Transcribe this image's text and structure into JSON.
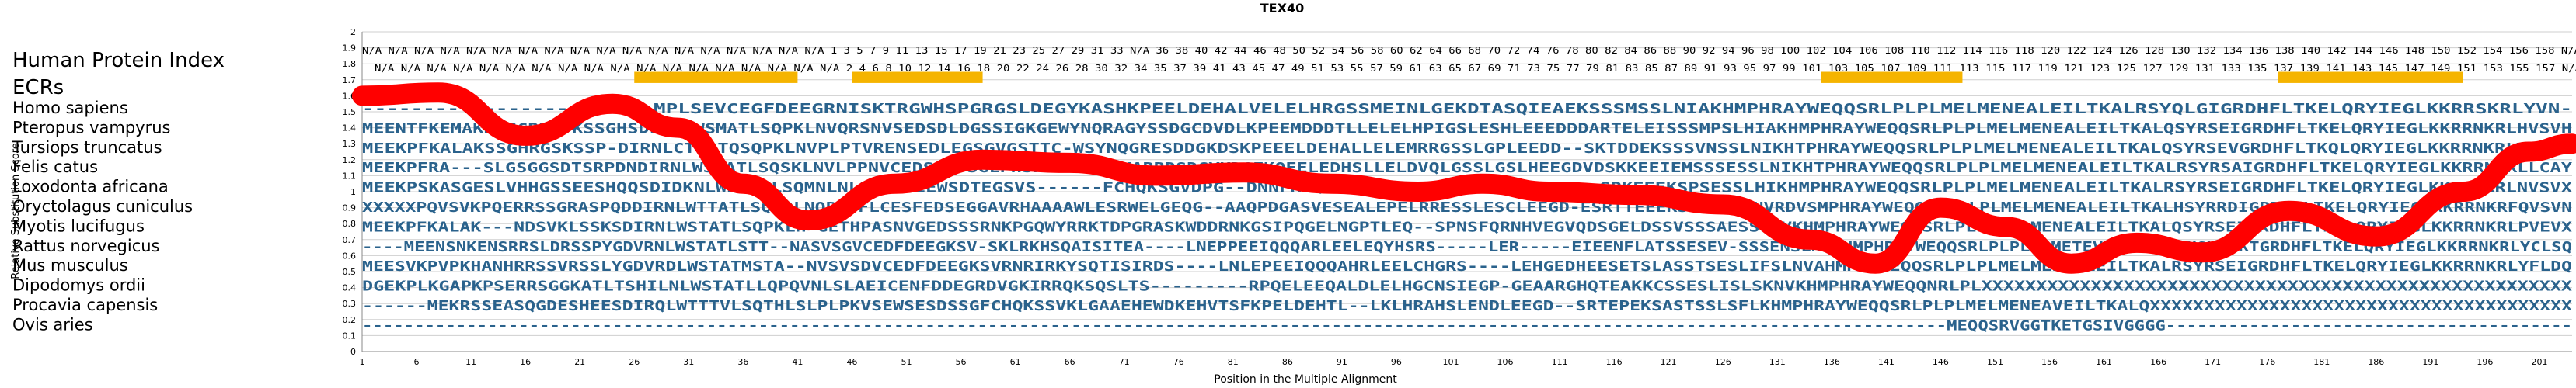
{
  "chart_data": {
    "type": "line",
    "title": "TEX40",
    "xlabel": "Position in the Multiple Alignment",
    "ylabel": "Relative Substitution Score",
    "xlim": [
      1,
      204
    ],
    "ylim": [
      0,
      2.0
    ],
    "x_ticks": [
      1,
      6,
      11,
      16,
      21,
      26,
      31,
      36,
      41,
      46,
      51,
      56,
      61,
      66,
      71,
      76,
      81,
      86,
      91,
      96,
      101,
      106,
      111,
      116,
      121,
      126,
      131,
      136,
      141,
      146,
      151,
      156,
      161,
      166,
      171,
      176,
      181,
      186,
      191,
      196,
      201
    ],
    "y_ticks": [
      "0",
      "0.1",
      "0.2",
      "0.3",
      "0.4",
      "0.5",
      "0.6",
      "0.7",
      "0.8",
      "0.9",
      "1",
      "1.1",
      "1.2",
      "1.3",
      "1.4",
      "1.5",
      "1.6",
      "1.7",
      "1.8",
      "1.9",
      "2"
    ],
    "index_label": "Human Protein Index",
    "ecr_label": "ECRs",
    "index_row_top": "N/A N/A N/A N/A N/A N/A N/A N/A N/A N/A N/A N/A N/A N/A N/A N/A N/A N/A 1 3 5 7 9 11 13 15 17 19 21 23 25 27 29 31 33 N/A 36 38 40 42 44 46 48 50 52 54 56 58 60 62 64 66 68 70 72 74 76 78 80 82 84 86 88 90 92 94 96 98 100 102 104 106 108 110 112 114 116 118 120 122 124 126 128 130 132 134 136 138 140 142 144 146 148 150 152 154 156 158 N/A",
    "index_row_bottom": "N/A N/A N/A N/A N/A N/A N/A N/A N/A N/A N/A N/A N/A N/A N/A N/A N/A N/A 2 4 6 8 10 12 14 16 18 20 22 24 26 28 30 32 34 35 37 39 41 43 45 47 49 51 53 55 57 59 61 63 65 67 69 71 73 75 77 79 81 83 85 87 89 91 93 95 97 99 101 103 105 107 109 111 113 115 117 119 121 123 125 127 129 131 133 135 137 139 141 143 145 147 149 151 153 155 157 N/A",
    "ecrs": [
      [
        26,
        41
      ],
      [
        46,
        58
      ],
      [
        135,
        148
      ],
      [
        177,
        194
      ]
    ],
    "species": [
      {
        "name": "Homo sapiens",
        "seq": "------------------------MPLSEVCEGFDEEGRNISKTRGWHSPGRGSLDEGYKASHKPEELDEHALVELELHRGSSMEINLGEKDTASQIEAEKSSSMSSLNIAKHMPHRAYWEQQSRLPLPLMELMENEALEILTKALRSYQLGIGRDHFLTKELQRYIEGLKKRRSKRLYVN-"
      },
      {
        "name": "Pteropus vampyrus",
        "seq": "MEENTFKEMAKSSGCRNSVKSSGHSDIRNLWSMATLSQPKLNVQRSNVSEDSDLDGSSIGKGEWYNQRAGYSSDGCDVDLKPEEMDDDTLLELELHPIGSLESHLEEEDDDARTELEISSSMPSLHIAKHMPHRAYWEQQSRLPLPLMELMENEALEILTKALQSYRSEIGRDHFLTKELQRYIEGLKKRRNKRLHVSVH"
      },
      {
        "name": "Tursiops truncatus",
        "seq": "MEEKPFKALAKSSGHRGSKSSP-DIRNLCTTATQSQPKLNVPLPTVRENSEDLEGSGVGSTTC-WSYNQGRESDDGKDSKPEEELDEHALLELEMRRGSSLGPLEEDD--SKTDDEKSSSVNSSLNIKHTPHRAYWEQQSRLPLPLMELMENEALEILTKALQSYRSEVGRDHFLTKQLQRYIEGLKKRRNKRLYVN--"
      },
      {
        "name": "Felis catus",
        "seq": "MEEKPFRA---SLGSGGSDTSRPDNDIRNLWSTATLSQSKLNVLPPNVCEDSLEDSGLPHSKTRRWRHEKARRDSDGYKDGFKQEELEDHSLLELDVQLGSSLGSLHEEGDVDSKKEEIEMSSSESSLNIKHTPHRAYWEQQSRLPLPLMELMENEALEILTKALRSYRSAIGRDHFLTKELQRYIEGLKKRRNKRLLCAY"
      },
      {
        "name": "Loxodonta africana",
        "seq": "MEEKPSKASGESLVHHGSSEESHQQSDIDKNLWSTATLSQMNLNLPLSKVEEWSDTEGSVS------FCHQKSGVDPG--DNNFK-QELDEHTLLELELFQSGSDLEERE--SRKEEEKSPSESSLHIKHMPHRAYWEQQSRLPLPLMELMENEALEILTKALRSYRSEIGRDHFLTKELQRYIEGLKKRRNKRLNVSVX"
      },
      {
        "name": "Oryctolagus cuniculus",
        "seq": "XXXXXPQVSVKPQERRSSGRASPQDDIRNLWTTATLSQSQLNQPASFLCESFEDSEGGAVRHAAAAWLESRWELGEQG--AAQPDGASVESEALEPELRRESSLESCLEEGD-ESRTTEEEKSSSESALNVRDVSMPHRAYWEQQSRLPLPLMELMENEALEILTKALHSYRRDIGRDHFLTKELQRYIEGLKKRRNKRFQVSVN"
      },
      {
        "name": "Myotis lucifugus",
        "seq": "MEEKPFKALAK---NDSVKLSSKSDIRNLWSTATLSQPKLH-GETHPASNVGEDSSSRNKPGQWYRRKTDPGRASKWDDRNKGSIPQGELNGPTLEQ--SPNSFQRNHVEGVQDSGELDSSVSSSAESSLNVKHMPHRAYWEQQSRLPLPLMDLMENEALEILTKALQSYRSEIGRDHFLTKELQRYIEGLKKRRNKRLPVEVX"
      },
      {
        "name": "Rattus norvegicus",
        "seq": "----MEENSNKENSRRSLDRSSPYGDVRNLWSTATLSTT--NASVSGVCEDFDEEGKSV-SKLRKHSQAISITEA----LNEPPEEIQQQARLEELEQYHSRS-----LER-----EIEENFLATSSESEV-SSSENSLNVAHMPHRAYWEQQSRLPLPLMDMETEVLDILTKALHSYRSKTGRDHFLTKELQRYIEGLKKRRNKRLYCLSQ"
      },
      {
        "name": "Mus musculus",
        "seq": "MEESVKPVPKHANHRRSSVRSSLYGDVRDLWSTATMSTA--NVSVSDVCEDFDEEGKSVRNRIRKYSQTISIRDS----LNLEPEEIQQQAHRLEELCHGRS----LEHGEDHEESETSLASSTSESLIFSLNVAHMPTYWEQQSRLPLPLMELMENEALEILTKALRSYRSEIGRDHFLTKELQRYIEGLKKRRNKRLYFLDQ"
      },
      {
        "name": "Dipodomys ordii",
        "seq": "DGEKPLKGAPKPSERRSGGKATLTSHILNLWSTATLLQPQVNLSLAEICENFDDEGRDVGKIRRQKSQSLTS---------RPQELEEQALDLELHGCNSIEGP-GEAARGHQTEAKKCSSESLISLSKNVKHMPHRAYWEQQNRLPLXXXXXXXXXXXXXXXXXXXXXXXXXXXXXXXXXXXXXXXXXXXXXXXXXXXXXX"
      },
      {
        "name": "Procavia capensis",
        "seq": "------MEKRSSEASQGDESHEESDIRQLWTTTVLSQTHLSLPLPKVSEWSESDSSGFCHQKSSVKLGAAEHEWDKEHVTSFKPELDEHTL--LKLHRAHSLENDLEEGD--SRTEPEKSASTSSLSFLKHMPHRAYWEQQSRLPLPLMELMENEAVEILTKALQXXXXXXXXXXXXXXXXXXXXXXXXXXXXXXXXXXXXXXX"
      },
      {
        "name": "Ovis aries",
        "seq": "--------------------------------------------------------------------------------------------------------------------------------------------------------MEQQSRVGGTKETGSIVGGGG---------------------------------------"
      }
    ],
    "series": [
      {
        "x": [
          1,
          8,
          16,
          24,
          30,
          36,
          42,
          50,
          58,
          66,
          74,
          82,
          90,
          98,
          104,
          110,
          118,
          126,
          134,
          140,
          146,
          152,
          158,
          164,
          170,
          178,
          186,
          194,
          200,
          204
        ],
        "y": [
          1.6,
          1.62,
          1.35,
          1.55,
          1.4,
          1.05,
          0.82,
          1.05,
          1.2,
          1.18,
          1.1,
          1.12,
          1.05,
          1.0,
          1.05,
          1.0,
          0.98,
          0.92,
          0.7,
          0.55,
          0.9,
          0.78,
          0.55,
          0.68,
          0.62,
          0.88,
          0.72,
          1.0,
          1.25,
          1.3
        ]
      }
    ]
  }
}
